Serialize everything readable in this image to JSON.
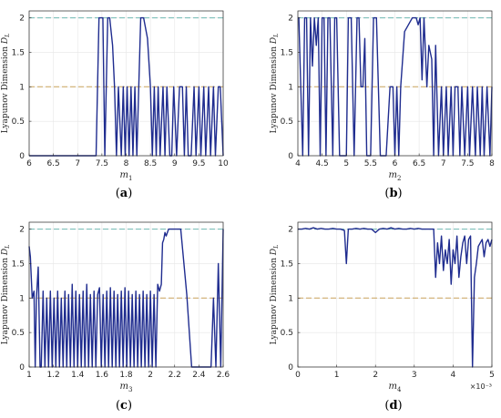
{
  "colors": {
    "series": "#1f2c8f",
    "ref_upper": "#6fb9b3",
    "ref_lower": "#c9a25a",
    "grid": "#e6e6e6",
    "axis": "#262626"
  },
  "chart_data": [
    {
      "type": "line",
      "panel": "(a)",
      "panel_open": "(",
      "panel_letter": "a",
      "panel_close": ")",
      "xlabel_sym": "m",
      "xlabel_sub": "1",
      "ylabel_text": "Lyapunov Dimension ",
      "ylabel_sym": "D",
      "ylabel_sub": "L",
      "xlim": [
        6,
        10
      ],
      "ylim": [
        0,
        2.1
      ],
      "xticks": [
        6,
        6.5,
        7,
        7.5,
        8,
        8.5,
        9,
        9.5,
        10
      ],
      "xtick_labels": [
        "6",
        "6.5",
        "7",
        "7.5",
        "8",
        "8.5",
        "9",
        "9.5",
        "10"
      ],
      "yticks": [
        0,
        0.5,
        1,
        1.5,
        2
      ],
      "ytick_labels": [
        "0",
        "0.5",
        "1",
        "1.5",
        "2"
      ],
      "x_multiplier": "",
      "reference_lines": [
        2,
        1
      ],
      "x": [
        6,
        7.38,
        7.44,
        7.52,
        7.56,
        7.62,
        7.66,
        7.72,
        7.76,
        7.8,
        7.84,
        7.9,
        7.94,
        7.98,
        8.02,
        8.06,
        8.1,
        8.14,
        8.18,
        8.22,
        8.26,
        8.3,
        8.32,
        8.36,
        8.44,
        8.5,
        8.54,
        8.58,
        8.62,
        8.66,
        8.7,
        8.76,
        8.8,
        8.84,
        8.9,
        8.94,
        8.98,
        9.04,
        9.1,
        9.16,
        9.2,
        9.24,
        9.28,
        9.34,
        9.4,
        9.44,
        9.5,
        9.54,
        9.6,
        9.64,
        9.7,
        9.74,
        9.8,
        9.84,
        9.9,
        9.94,
        10
      ],
      "y": [
        0,
        0,
        2,
        2,
        0,
        2,
        2,
        1.6,
        1,
        0,
        1,
        0,
        1,
        0,
        1,
        0,
        1,
        0,
        1,
        0,
        1,
        2,
        2,
        2,
        1.7,
        1,
        0,
        1,
        0,
        1,
        0,
        1,
        0,
        1,
        0,
        0,
        1,
        0,
        1,
        1,
        0,
        1,
        0,
        0,
        1,
        0,
        1,
        0,
        1,
        0,
        1,
        0,
        1,
        0,
        1,
        1,
        0
      ]
    },
    {
      "type": "line",
      "panel": "(b)",
      "panel_open": "(",
      "panel_letter": "b",
      "panel_close": ")",
      "xlabel_sym": "m",
      "xlabel_sub": "2",
      "ylabel_text": "Lyapunov Dimension ",
      "ylabel_sym": "D",
      "ylabel_sub": "L",
      "xlim": [
        4,
        8
      ],
      "ylim": [
        0,
        2.1
      ],
      "xticks": [
        4,
        4.5,
        5,
        5.5,
        6,
        6.5,
        7,
        7.5,
        8
      ],
      "xtick_labels": [
        "4",
        "4.5",
        "5",
        "5.5",
        "6",
        "6.5",
        "7",
        "7.5",
        "8"
      ],
      "yticks": [
        0,
        0.5,
        1,
        1.5,
        2
      ],
      "ytick_labels": [
        "0",
        "0.5",
        "1",
        "1.5",
        "2"
      ],
      "x_multiplier": "",
      "reference_lines": [
        2,
        1
      ],
      "x": [
        4,
        4.02,
        4.06,
        4.1,
        4.14,
        4.18,
        4.22,
        4.26,
        4.3,
        4.34,
        4.38,
        4.42,
        4.46,
        4.5,
        4.54,
        4.58,
        4.62,
        4.66,
        4.72,
        4.76,
        4.8,
        4.86,
        4.9,
        5,
        5.04,
        5.1,
        5.16,
        5.22,
        5.26,
        5.3,
        5.34,
        5.38,
        5.42,
        5.5,
        5.56,
        5.62,
        5.7,
        5.76,
        5.82,
        5.9,
        5.96,
        6,
        6.04,
        6.08,
        6.12,
        6.2,
        6.36,
        6.4,
        6.44,
        6.48,
        6.52,
        6.56,
        6.6,
        6.66,
        6.7,
        6.76,
        6.8,
        6.84,
        6.9,
        6.96,
        7,
        7.06,
        7.1,
        7.16,
        7.2,
        7.24,
        7.3,
        7.34,
        7.38,
        7.44,
        7.5,
        7.54,
        7.6,
        7.66,
        7.7,
        7.76,
        7.8,
        7.84,
        7.9,
        7.96,
        8
      ],
      "y": [
        2,
        2,
        1,
        0,
        2,
        2,
        0,
        2,
        1.3,
        2,
        1.6,
        2,
        0,
        2,
        2,
        0,
        2,
        2,
        0,
        2,
        2,
        0,
        0,
        0,
        2,
        2,
        0,
        2,
        2,
        1,
        1,
        1.7,
        0,
        0,
        2,
        2,
        0,
        0,
        0,
        1,
        1,
        0,
        1,
        0,
        1,
        1.8,
        2,
        2,
        2,
        1.9,
        2,
        1.1,
        2,
        1,
        1.6,
        1.4,
        0,
        1.6,
        0,
        1,
        0,
        1,
        0,
        1,
        0,
        1,
        1,
        0,
        1,
        0,
        1,
        0,
        1,
        0,
        1,
        0,
        1,
        0,
        1,
        0,
        1
      ]
    },
    {
      "type": "line",
      "panel": "(c)",
      "panel_open": "(",
      "panel_letter": "c",
      "panel_close": ")",
      "xlabel_sym": "m",
      "xlabel_sub": "3",
      "ylabel_text": "Lyapunov Dimension ",
      "ylabel_sym": "D",
      "ylabel_sub": "L",
      "xlim": [
        1,
        2.6
      ],
      "ylim": [
        0,
        2.1
      ],
      "xticks": [
        1,
        1.2,
        1.4,
        1.6,
        1.8,
        2,
        2.2,
        2.4,
        2.6
      ],
      "xtick_labels": [
        "1",
        "1.2",
        "1.4",
        "1.6",
        "1.8",
        "2",
        "2.2",
        "2.4",
        "2.6"
      ],
      "yticks": [
        0,
        0.5,
        1,
        1.5,
        2
      ],
      "ytick_labels": [
        "0",
        "0.5",
        "1",
        "1.5",
        "2"
      ],
      "x_multiplier": "",
      "reference_lines": [
        2,
        1
      ],
      "x": [
        1,
        1.01,
        1.025,
        1.04,
        1.05,
        1.06,
        1.075,
        1.09,
        1.1,
        1.115,
        1.13,
        1.145,
        1.16,
        1.175,
        1.19,
        1.205,
        1.22,
        1.235,
        1.25,
        1.265,
        1.28,
        1.295,
        1.31,
        1.325,
        1.34,
        1.355,
        1.37,
        1.385,
        1.4,
        1.415,
        1.43,
        1.445,
        1.46,
        1.475,
        1.49,
        1.505,
        1.52,
        1.535,
        1.55,
        1.565,
        1.58,
        1.595,
        1.61,
        1.625,
        1.64,
        1.655,
        1.67,
        1.685,
        1.7,
        1.715,
        1.73,
        1.745,
        1.76,
        1.775,
        1.79,
        1.805,
        1.82,
        1.835,
        1.85,
        1.865,
        1.88,
        1.895,
        1.91,
        1.925,
        1.94,
        1.955,
        1.97,
        1.985,
        2,
        2.015,
        2.03,
        2.045,
        2.06,
        2.075,
        2.09,
        2.1,
        2.11,
        2.12,
        2.13,
        2.14,
        2.15,
        2.16,
        2.2,
        2.25,
        2.3,
        2.34,
        2.38,
        2.42,
        2.46,
        2.5,
        2.52,
        2.54,
        2.56,
        2.58,
        2.6
      ],
      "y": [
        1.75,
        1.6,
        1,
        1.1,
        0,
        1,
        1.45,
        0,
        0,
        1.1,
        0,
        1,
        0,
        1.1,
        0,
        1,
        0,
        1.1,
        0,
        1,
        0,
        1.1,
        0,
        1.05,
        0,
        1.2,
        0,
        1.1,
        0,
        1.05,
        0,
        1.1,
        0,
        1.2,
        0,
        1.05,
        0,
        1.1,
        0,
        1.05,
        1.15,
        0,
        1.05,
        0,
        1.1,
        0,
        1.15,
        0,
        1.1,
        0,
        1.05,
        0,
        1.1,
        0,
        1.15,
        0,
        1.1,
        0,
        1.05,
        0,
        1.1,
        0,
        1.05,
        0,
        1.1,
        0,
        1.05,
        0,
        1.1,
        0,
        1.05,
        0,
        1.2,
        1.1,
        1.2,
        1.8,
        1.85,
        1.95,
        1.9,
        1.95,
        2,
        2,
        2,
        2,
        1.05,
        0,
        0,
        0,
        0,
        0,
        1,
        0,
        1.5,
        0,
        2
      ]
    },
    {
      "type": "line",
      "panel": "(d)",
      "panel_open": "(",
      "panel_letter": "d",
      "panel_close": ")",
      "xlabel_sym": "m",
      "xlabel_sub": "4",
      "ylabel_text": "Lyapunov Dimension ",
      "ylabel_sym": "D",
      "ylabel_sub": "L",
      "xlim": [
        0,
        5
      ],
      "ylim": [
        0,
        2.1
      ],
      "xticks": [
        0,
        1,
        2,
        3,
        4,
        5
      ],
      "xtick_labels": [
        "0",
        "1",
        "2",
        "3",
        "4",
        "5"
      ],
      "yticks": [
        0,
        0.5,
        1,
        1.5,
        2
      ],
      "ytick_labels": [
        "0",
        "0.5",
        "1",
        "1.5",
        "2"
      ],
      "x_multiplier": "×10⁻³",
      "reference_lines": [
        2,
        1
      ],
      "x": [
        0,
        0.1,
        0.2,
        0.3,
        0.4,
        0.5,
        0.6,
        0.7,
        0.8,
        0.9,
        1,
        1.1,
        1.2,
        1.25,
        1.3,
        1.4,
        1.5,
        1.6,
        1.7,
        1.8,
        1.9,
        2,
        2.1,
        2.2,
        2.3,
        2.4,
        2.5,
        2.6,
        2.7,
        2.8,
        2.9,
        3,
        3.1,
        3.2,
        3.3,
        3.4,
        3.45,
        3.5,
        3.55,
        3.6,
        3.65,
        3.7,
        3.75,
        3.8,
        3.85,
        3.9,
        3.95,
        4,
        4.05,
        4.1,
        4.15,
        4.2,
        4.25,
        4.3,
        4.35,
        4.4,
        4.45,
        4.5,
        4.55,
        4.6,
        4.65,
        4.7,
        4.75,
        4.8,
        4.85,
        4.9,
        4.95,
        5
      ],
      "y": [
        2,
        2,
        2.01,
        2,
        2.02,
        2,
        2.01,
        2,
        2,
        2.01,
        2,
        2,
        1.98,
        1.5,
        2,
        2,
        2.01,
        2,
        2.01,
        2,
        2,
        1.95,
        2,
        2.01,
        2,
        2.02,
        2,
        2.01,
        2,
        2,
        2.01,
        2,
        2.01,
        2,
        2,
        2,
        2,
        2,
        1.3,
        1.8,
        1.5,
        1.9,
        1.4,
        1.7,
        1.5,
        1.85,
        1.2,
        1.7,
        1.5,
        1.9,
        1.3,
        1.6,
        1.8,
        1.9,
        1.5,
        1.85,
        1.9,
        0,
        1.3,
        1.5,
        1.75,
        1.8,
        1.85,
        1.6,
        1.8,
        1.85,
        1.75,
        1.85
      ]
    }
  ]
}
